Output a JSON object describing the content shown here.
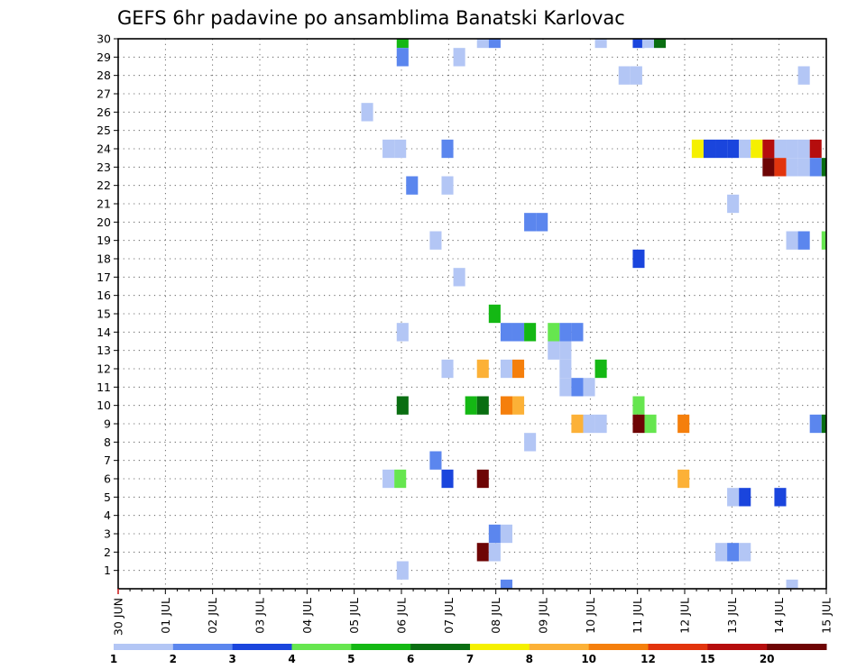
{
  "chart_data": {
    "type": "heatmap",
    "title": "GEFS 6hr padavine po ansamblima Banatski Karlovac",
    "xlabel": "",
    "ylabel": "",
    "x_ticks": [
      "30 JUN",
      "01 JUL",
      "02 JUL",
      "03 JUL",
      "04 JUL",
      "05 JUL",
      "06 JUL",
      "07 JUL",
      "08 JUL",
      "09 JUL",
      "10 JUL",
      "11 JUL",
      "12 JUL",
      "13 JUL",
      "14 JUL",
      "15 JUL"
    ],
    "x_range_days": [
      0,
      15
    ],
    "x_step_days": 0.25,
    "y_ticks": [
      "1",
      "2",
      "3",
      "4",
      "5",
      "6",
      "7",
      "8",
      "9",
      "10",
      "11",
      "12",
      "13",
      "14",
      "15",
      "16",
      "17",
      "18",
      "19",
      "20",
      "21",
      "22",
      "23",
      "24",
      "25",
      "26",
      "27",
      "28",
      "29",
      "30"
    ],
    "y_range_members": [
      0,
      30
    ],
    "grid": true,
    "legend_position": "bottom",
    "legend": {
      "labels": [
        "1",
        "2",
        "3",
        "4",
        "5",
        "6",
        "7",
        "8",
        "10",
        "12",
        "15",
        "20"
      ],
      "colors": [
        "#b3c6f5",
        "#5b86ee",
        "#1a45dd",
        "#66e64f",
        "#14b814",
        "#0a6e12",
        "#f5f000",
        "#fcb137",
        "#f57f0c",
        "#e2340d",
        "#b50d0d",
        "#6e0505"
      ]
    },
    "cells_note": "Each cell is [member (row), day offset from 30 JUN 00UTC, precipitation class index 0-11 matching legend colors]",
    "cells": [
      [
        30,
        5.9,
        4
      ],
      [
        30,
        7.6,
        0
      ],
      [
        30,
        7.85,
        1
      ],
      [
        30,
        10.1,
        0
      ],
      [
        30,
        10.9,
        2
      ],
      [
        30,
        11.1,
        0
      ],
      [
        30,
        11.35,
        5
      ],
      [
        29,
        5.9,
        1
      ],
      [
        29,
        7.1,
        0
      ],
      [
        28,
        10.6,
        0
      ],
      [
        28,
        10.85,
        0
      ],
      [
        28,
        14.4,
        0
      ],
      [
        26,
        5.15,
        0
      ],
      [
        24,
        5.6,
        0
      ],
      [
        24,
        5.85,
        0
      ],
      [
        24,
        6.85,
        1
      ],
      [
        24,
        12.15,
        6
      ],
      [
        24,
        12.4,
        2
      ],
      [
        24,
        12.65,
        2
      ],
      [
        24,
        12.9,
        2
      ],
      [
        24,
        13.15,
        0
      ],
      [
        24,
        13.4,
        6
      ],
      [
        24,
        13.65,
        10
      ],
      [
        24,
        13.9,
        0
      ],
      [
        24,
        14.15,
        0
      ],
      [
        24,
        14.4,
        0
      ],
      [
        24,
        14.65,
        10
      ],
      [
        23,
        13.65,
        11
      ],
      [
        23,
        13.9,
        9
      ],
      [
        23,
        14.15,
        0
      ],
      [
        23,
        14.4,
        0
      ],
      [
        23,
        14.65,
        1
      ],
      [
        23,
        14.9,
        5
      ],
      [
        22,
        6.1,
        1
      ],
      [
        22,
        6.85,
        0
      ],
      [
        21,
        12.9,
        0
      ],
      [
        20,
        8.6,
        1
      ],
      [
        20,
        8.85,
        1
      ],
      [
        19,
        6.6,
        0
      ],
      [
        19,
        14.15,
        0
      ],
      [
        19,
        14.4,
        1
      ],
      [
        19,
        14.9,
        3
      ],
      [
        18,
        10.9,
        2
      ],
      [
        17,
        7.1,
        0
      ],
      [
        15,
        7.85,
        4
      ],
      [
        14,
        5.9,
        0
      ],
      [
        14,
        8.1,
        1
      ],
      [
        14,
        8.35,
        1
      ],
      [
        14,
        8.6,
        4
      ],
      [
        14,
        9.1,
        3
      ],
      [
        14,
        9.35,
        1
      ],
      [
        14,
        9.6,
        1
      ],
      [
        13,
        9.1,
        0
      ],
      [
        13,
        9.35,
        0
      ],
      [
        12,
        6.85,
        0
      ],
      [
        12,
        7.6,
        7
      ],
      [
        12,
        8.1,
        0
      ],
      [
        12,
        8.35,
        8
      ],
      [
        12,
        9.35,
        0
      ],
      [
        12,
        10.1,
        4
      ],
      [
        11,
        9.35,
        0
      ],
      [
        11,
        9.6,
        1
      ],
      [
        11,
        9.85,
        0
      ],
      [
        10,
        5.9,
        5
      ],
      [
        10,
        7.35,
        4
      ],
      [
        10,
        7.6,
        5
      ],
      [
        10,
        8.1,
        8
      ],
      [
        10,
        8.35,
        7
      ],
      [
        10,
        10.9,
        3
      ],
      [
        9,
        9.6,
        7
      ],
      [
        9,
        9.85,
        0
      ],
      [
        9,
        10.1,
        0
      ],
      [
        9,
        10.9,
        11
      ],
      [
        9,
        11.15,
        3
      ],
      [
        9,
        11.85,
        8
      ],
      [
        9,
        14.65,
        1
      ],
      [
        9,
        14.9,
        5
      ],
      [
        8,
        8.6,
        0
      ],
      [
        7,
        6.6,
        1
      ],
      [
        6,
        5.6,
        0
      ],
      [
        6,
        5.85,
        3
      ],
      [
        6,
        6.85,
        2
      ],
      [
        6,
        7.6,
        11
      ],
      [
        6,
        11.85,
        7
      ],
      [
        5,
        12.9,
        0
      ],
      [
        5,
        13.15,
        2
      ],
      [
        5,
        13.9,
        2
      ],
      [
        3,
        7.85,
        1
      ],
      [
        3,
        8.1,
        0
      ],
      [
        2,
        7.6,
        11
      ],
      [
        2,
        7.85,
        0
      ],
      [
        2,
        12.65,
        0
      ],
      [
        2,
        12.9,
        1
      ],
      [
        2,
        13.15,
        0
      ],
      [
        1,
        5.9,
        0
      ],
      [
        0,
        8.1,
        1
      ],
      [
        0,
        14.15,
        0
      ]
    ]
  }
}
